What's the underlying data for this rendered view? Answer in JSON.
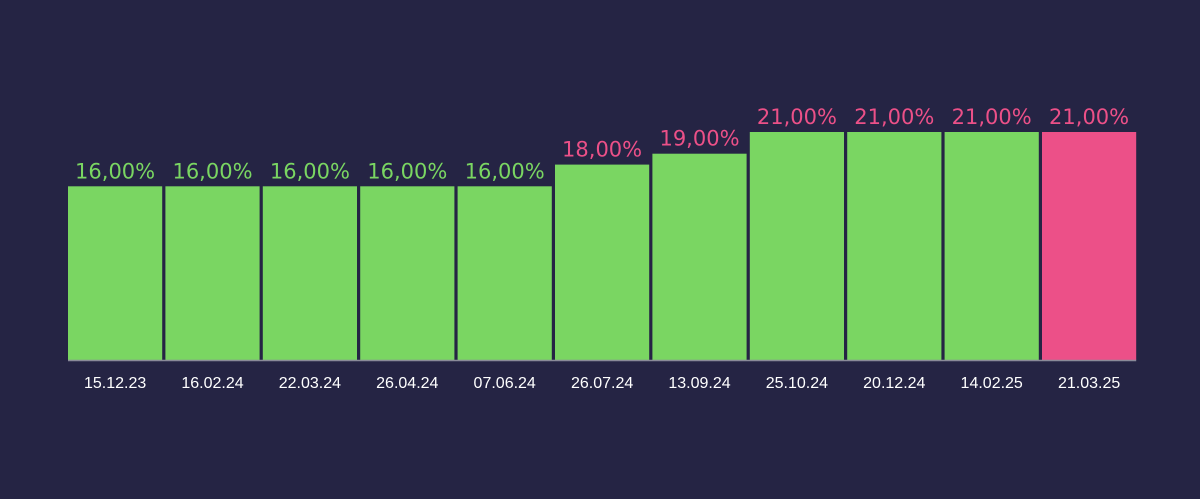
{
  "chart_data": {
    "type": "bar",
    "categories": [
      "15.12.23",
      "16.02.24",
      "22.03.24",
      "26.04.24",
      "07.06.24",
      "26.07.24",
      "13.09.24",
      "25.10.24",
      "20.12.24",
      "14.02.25",
      "21.03.25"
    ],
    "values": [
      16,
      16,
      16,
      16,
      16,
      18,
      19,
      21,
      21,
      21,
      21
    ],
    "value_labels": [
      "16,00%",
      "16,00%",
      "16,00%",
      "16,00%",
      "16,00%",
      "18,00%",
      "19,00%",
      "21,00%",
      "21,00%",
      "21,00%",
      "21,00%"
    ],
    "ylim": [
      0,
      21
    ],
    "grid": false,
    "title": "",
    "xlabel": "",
    "ylabel": "",
    "bar_colors": [
      "#7ad662",
      "#7ad662",
      "#7ad662",
      "#7ad662",
      "#7ad662",
      "#7ad662",
      "#7ad662",
      "#7ad662",
      "#7ad662",
      "#7ad662",
      "#ec5088"
    ],
    "label_colors": [
      "#7ad662",
      "#7ad662",
      "#7ad662",
      "#7ad662",
      "#7ad662",
      "#ec5088",
      "#ec5088",
      "#ec5088",
      "#ec5088",
      "#ec5088",
      "#ec5088"
    ],
    "background_color": "#252444",
    "baseline_color": "#8a8a99"
  }
}
